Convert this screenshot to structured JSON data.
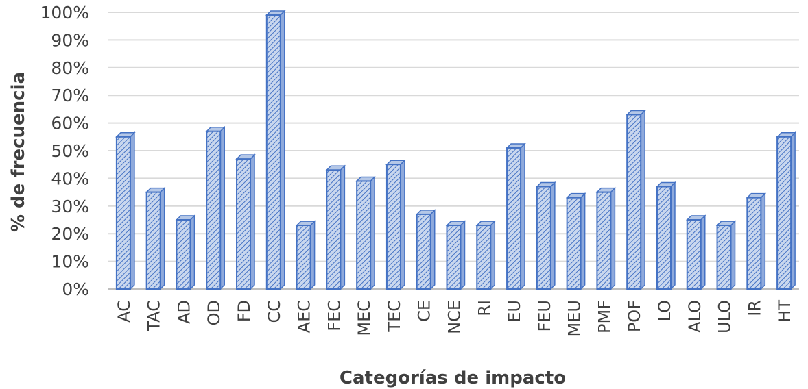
{
  "chart_data": {
    "type": "bar",
    "title": "",
    "xlabel": "Categorías de impacto",
    "ylabel": "% de frecuencia",
    "ylim": [
      0,
      100
    ],
    "yticks": [
      "0%",
      "10%",
      "20%",
      "30%",
      "40%",
      "50%",
      "60%",
      "70%",
      "80%",
      "90%",
      "100%"
    ],
    "grid": true,
    "legend": "none",
    "bar_color": "#4472c4",
    "bar_fill_color": "#b4c7e7",
    "categories": [
      "AC",
      "TAC",
      "AD",
      "OD",
      "FD",
      "CC",
      "AEC",
      "FEC",
      "MEC",
      "TEC",
      "CE",
      "NCE",
      "RI",
      "EU",
      "FEU",
      "MEU",
      "PMF",
      "POF",
      "LO",
      "ALO",
      "ULO",
      "IR",
      "HT"
    ],
    "values": [
      55,
      35,
      25,
      57,
      47,
      99,
      23,
      43,
      39,
      45,
      27,
      23,
      23,
      51,
      37,
      33,
      35,
      63,
      37,
      25,
      23,
      33,
      55
    ]
  }
}
